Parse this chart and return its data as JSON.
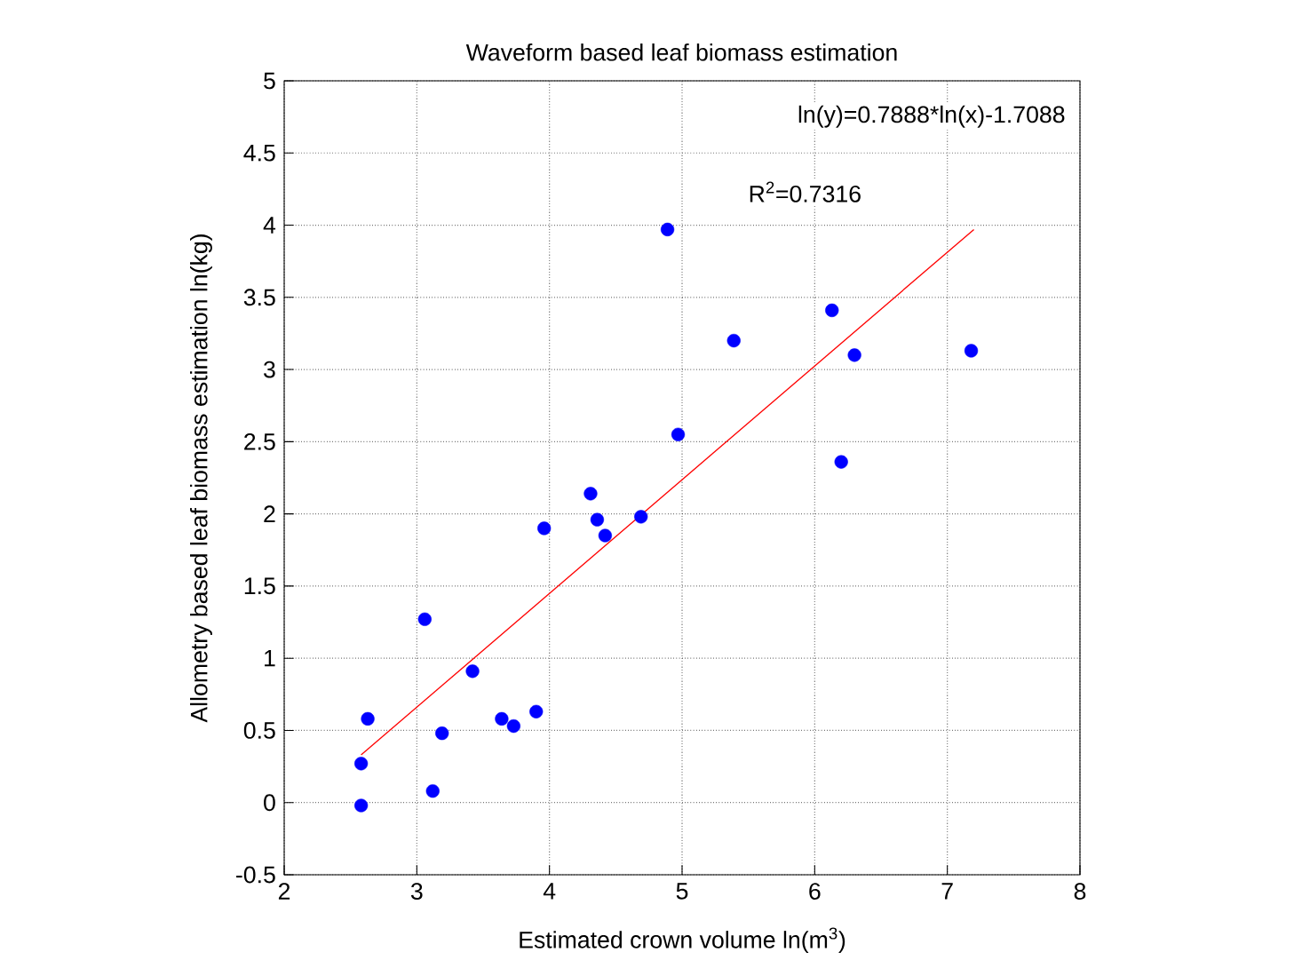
{
  "chart_data": {
    "type": "scatter",
    "title": "Waveform based leaf biomass estimation",
    "xlabel": "Estimated crown volume ln(m$^{3}$)",
    "ylabel": "Allometry based leaf biomass estimation ln(kg)",
    "x": [
      2.58,
      2.58,
      2.63,
      3.12,
      3.06,
      3.19,
      3.42,
      3.64,
      3.73,
      3.9,
      3.96,
      4.31,
      4.36,
      4.42,
      4.69,
      4.89,
      4.97,
      5.39,
      6.13,
      6.2,
      6.3,
      7.18
    ],
    "series": [
      {
        "color": "#0000ff",
        "marker": "circle",
        "values": [
          -0.02,
          0.27,
          0.58,
          0.08,
          1.27,
          0.48,
          0.91,
          0.58,
          0.53,
          0.63,
          1.9,
          2.14,
          1.96,
          1.85,
          1.98,
          3.97,
          2.55,
          3.2,
          3.41,
          2.36,
          3.1,
          3.13
        ]
      },
      {
        "type": "line",
        "color": "#ff0000",
        "marker": "none",
        "line_style": "solid",
        "x": [
          2.58,
          7.2
        ],
        "values": [
          0.33,
          3.97
        ]
      }
    ],
    "annotations": [
      "ln(y)=0.7888*ln(x)-1.7088",
      "R$^{2}$=0.7316"
    ],
    "xlim": [
      2,
      8
    ],
    "ylim": [
      -0.5,
      5
    ],
    "xticks": [
      2,
      3,
      4,
      5,
      6,
      7,
      8
    ],
    "yticks": [
      -0.5,
      0,
      0.5,
      1,
      1.5,
      2,
      2.5,
      3,
      3.5,
      4,
      4.5,
      5
    ],
    "grid": true
  }
}
